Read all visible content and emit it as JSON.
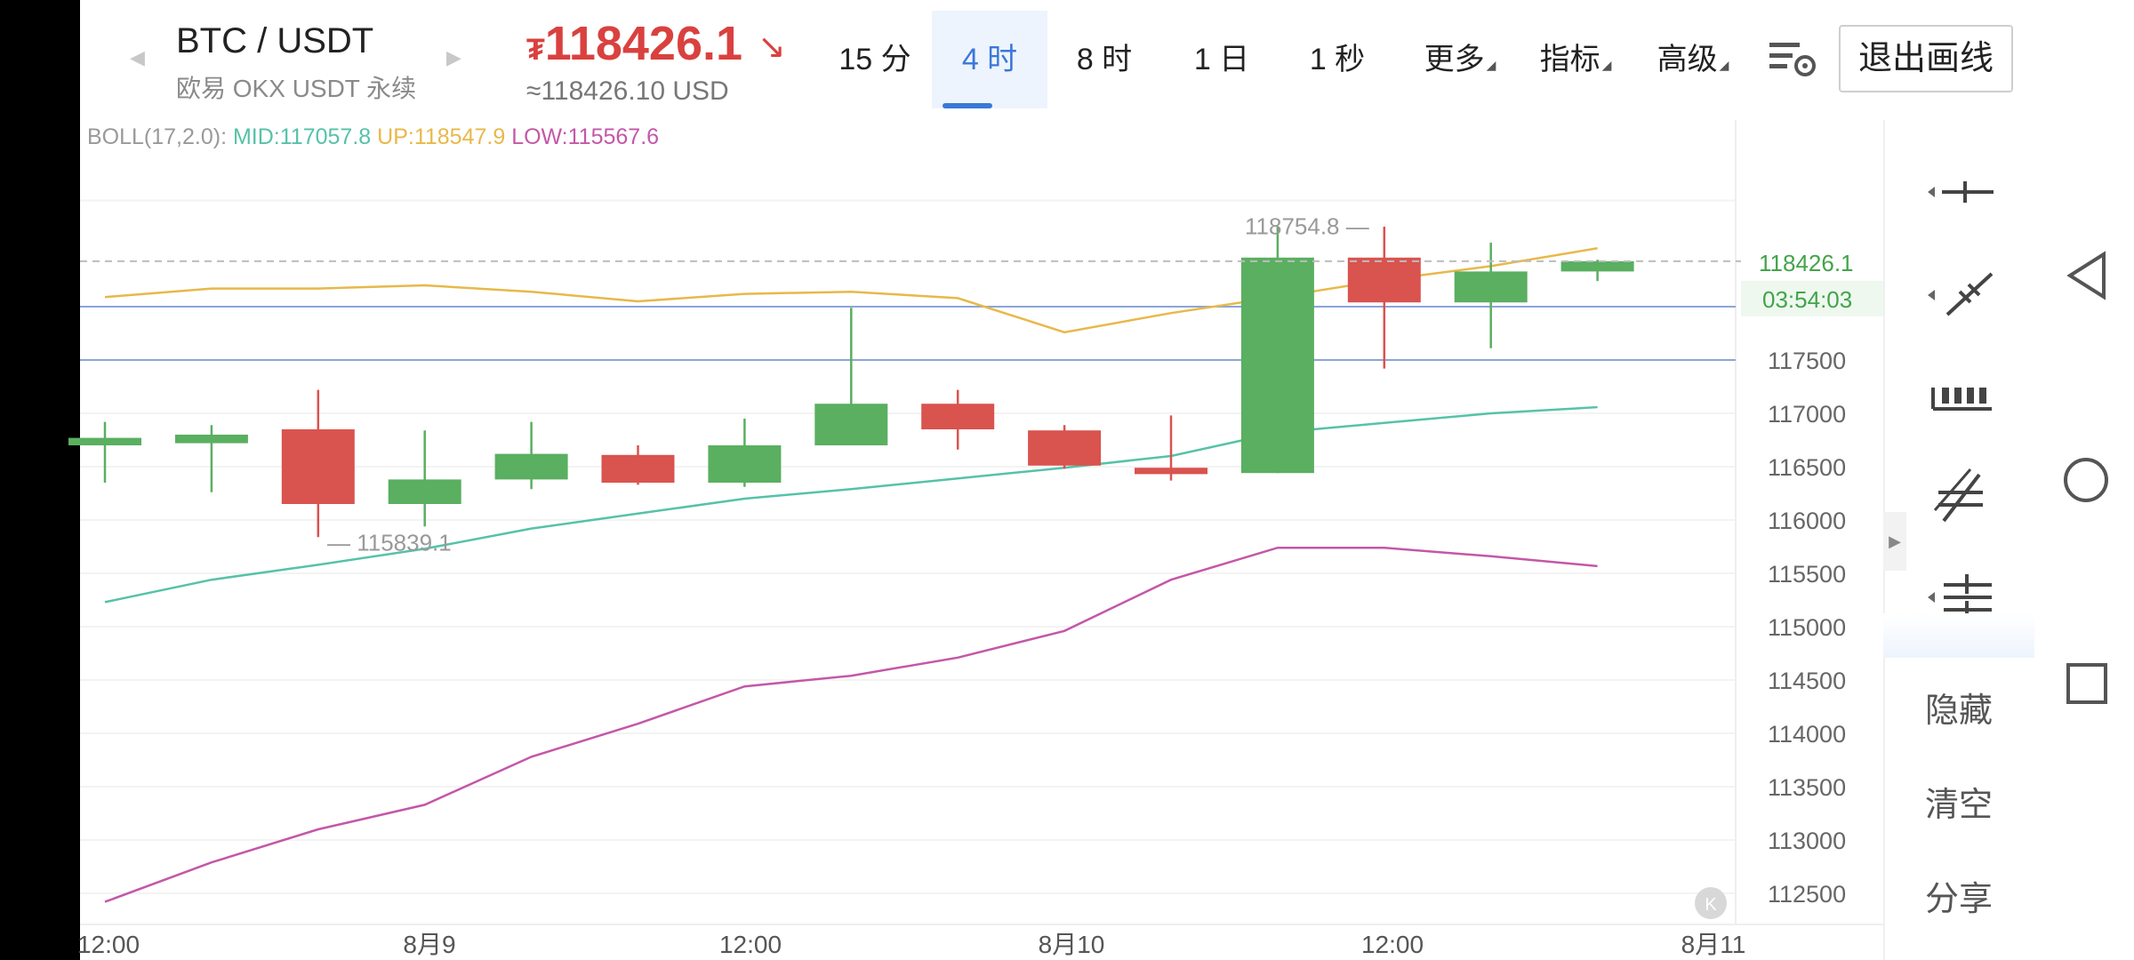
{
  "header": {
    "pair": "BTC / USDT",
    "exchange": "欧易 OKX USDT 永续",
    "price": "118426.1",
    "price_symbol": "₮",
    "price_usd": "≈118426.10 USD",
    "tabs": [
      {
        "label": "15 分",
        "active": false
      },
      {
        "label": "4 时",
        "active": true
      },
      {
        "label": "8 时",
        "active": false
      },
      {
        "label": "1 日",
        "active": false
      },
      {
        "label": "1 秒",
        "active": false
      },
      {
        "label": "更多",
        "active": false
      },
      {
        "label": "指标",
        "active": false
      },
      {
        "label": "高级",
        "active": false
      }
    ],
    "exit_label": "退出画线"
  },
  "legend": {
    "name": "BOLL(17,2.0):",
    "mid": "MID:117057.8",
    "up": "UP:118547.9",
    "low": "LOW:115567.6"
  },
  "colors": {
    "up": "#5aaf60",
    "down": "#d9534f",
    "mid": "#56c2a8",
    "upper": "#e8b84a",
    "lower": "#c457a8",
    "hline": "#8aa6d6"
  },
  "chart_data": {
    "type": "candlestick",
    "y_ticks": [
      117500,
      117000,
      116500,
      116000,
      115500,
      115000,
      114500,
      114000,
      113500,
      113000,
      112500
    ],
    "x_labels": [
      "12:00",
      "8月9",
      "12:00",
      "8月10",
      "12:00",
      "8月11"
    ],
    "current_price_label": "118426.1",
    "countdown_label": "03:54:03",
    "max_label": "118754.8",
    "min_label": "115839.1",
    "hlines": [
      118000,
      117500
    ],
    "candles": [
      {
        "o": 116700,
        "h": 116920,
        "l": 116350,
        "c": 116770
      },
      {
        "o": 116720,
        "h": 116890,
        "l": 116260,
        "c": 116800
      },
      {
        "o": 116850,
        "h": 117220,
        "l": 115840,
        "c": 116150
      },
      {
        "o": 116150,
        "h": 116840,
        "l": 115940,
        "c": 116380
      },
      {
        "o": 116380,
        "h": 116920,
        "l": 116290,
        "c": 116620
      },
      {
        "o": 116610,
        "h": 116700,
        "l": 116330,
        "c": 116350
      },
      {
        "o": 116350,
        "h": 116950,
        "l": 116310,
        "c": 116700
      },
      {
        "o": 116700,
        "h": 117990,
        "l": 116700,
        "c": 117090
      },
      {
        "o": 117090,
        "h": 117220,
        "l": 116660,
        "c": 116850
      },
      {
        "o": 116840,
        "h": 116890,
        "l": 116480,
        "c": 116510
      },
      {
        "o": 116490,
        "h": 116980,
        "l": 116370,
        "c": 116430
      },
      {
        "o": 116440,
        "h": 118754.8,
        "l": 116440,
        "c": 118460
      },
      {
        "o": 118460,
        "h": 118750,
        "l": 117420,
        "c": 118040
      },
      {
        "o": 118040,
        "h": 118600,
        "l": 117610,
        "c": 118330
      },
      {
        "o": 118330,
        "h": 118440,
        "l": 118240,
        "c": 118426.1
      }
    ],
    "boll_mid": [
      115230,
      115440,
      115580,
      115730,
      115920,
      116060,
      116200,
      116290,
      116390,
      116490,
      116600,
      116820,
      116910,
      117000,
      117057.8
    ],
    "boll_up": [
      118090,
      118170,
      118170,
      118200,
      118140,
      118050,
      118120,
      118140,
      118080,
      117760,
      117940,
      118090,
      118250,
      118380,
      118547.9
    ],
    "boll_low": [
      112420,
      112790,
      113100,
      113330,
      113780,
      114090,
      114440,
      114540,
      114710,
      114960,
      115440,
      115740,
      115740,
      115660,
      115567.6
    ]
  },
  "tools": {
    "hide": "隐藏",
    "clear": "清空",
    "share": "分享"
  }
}
